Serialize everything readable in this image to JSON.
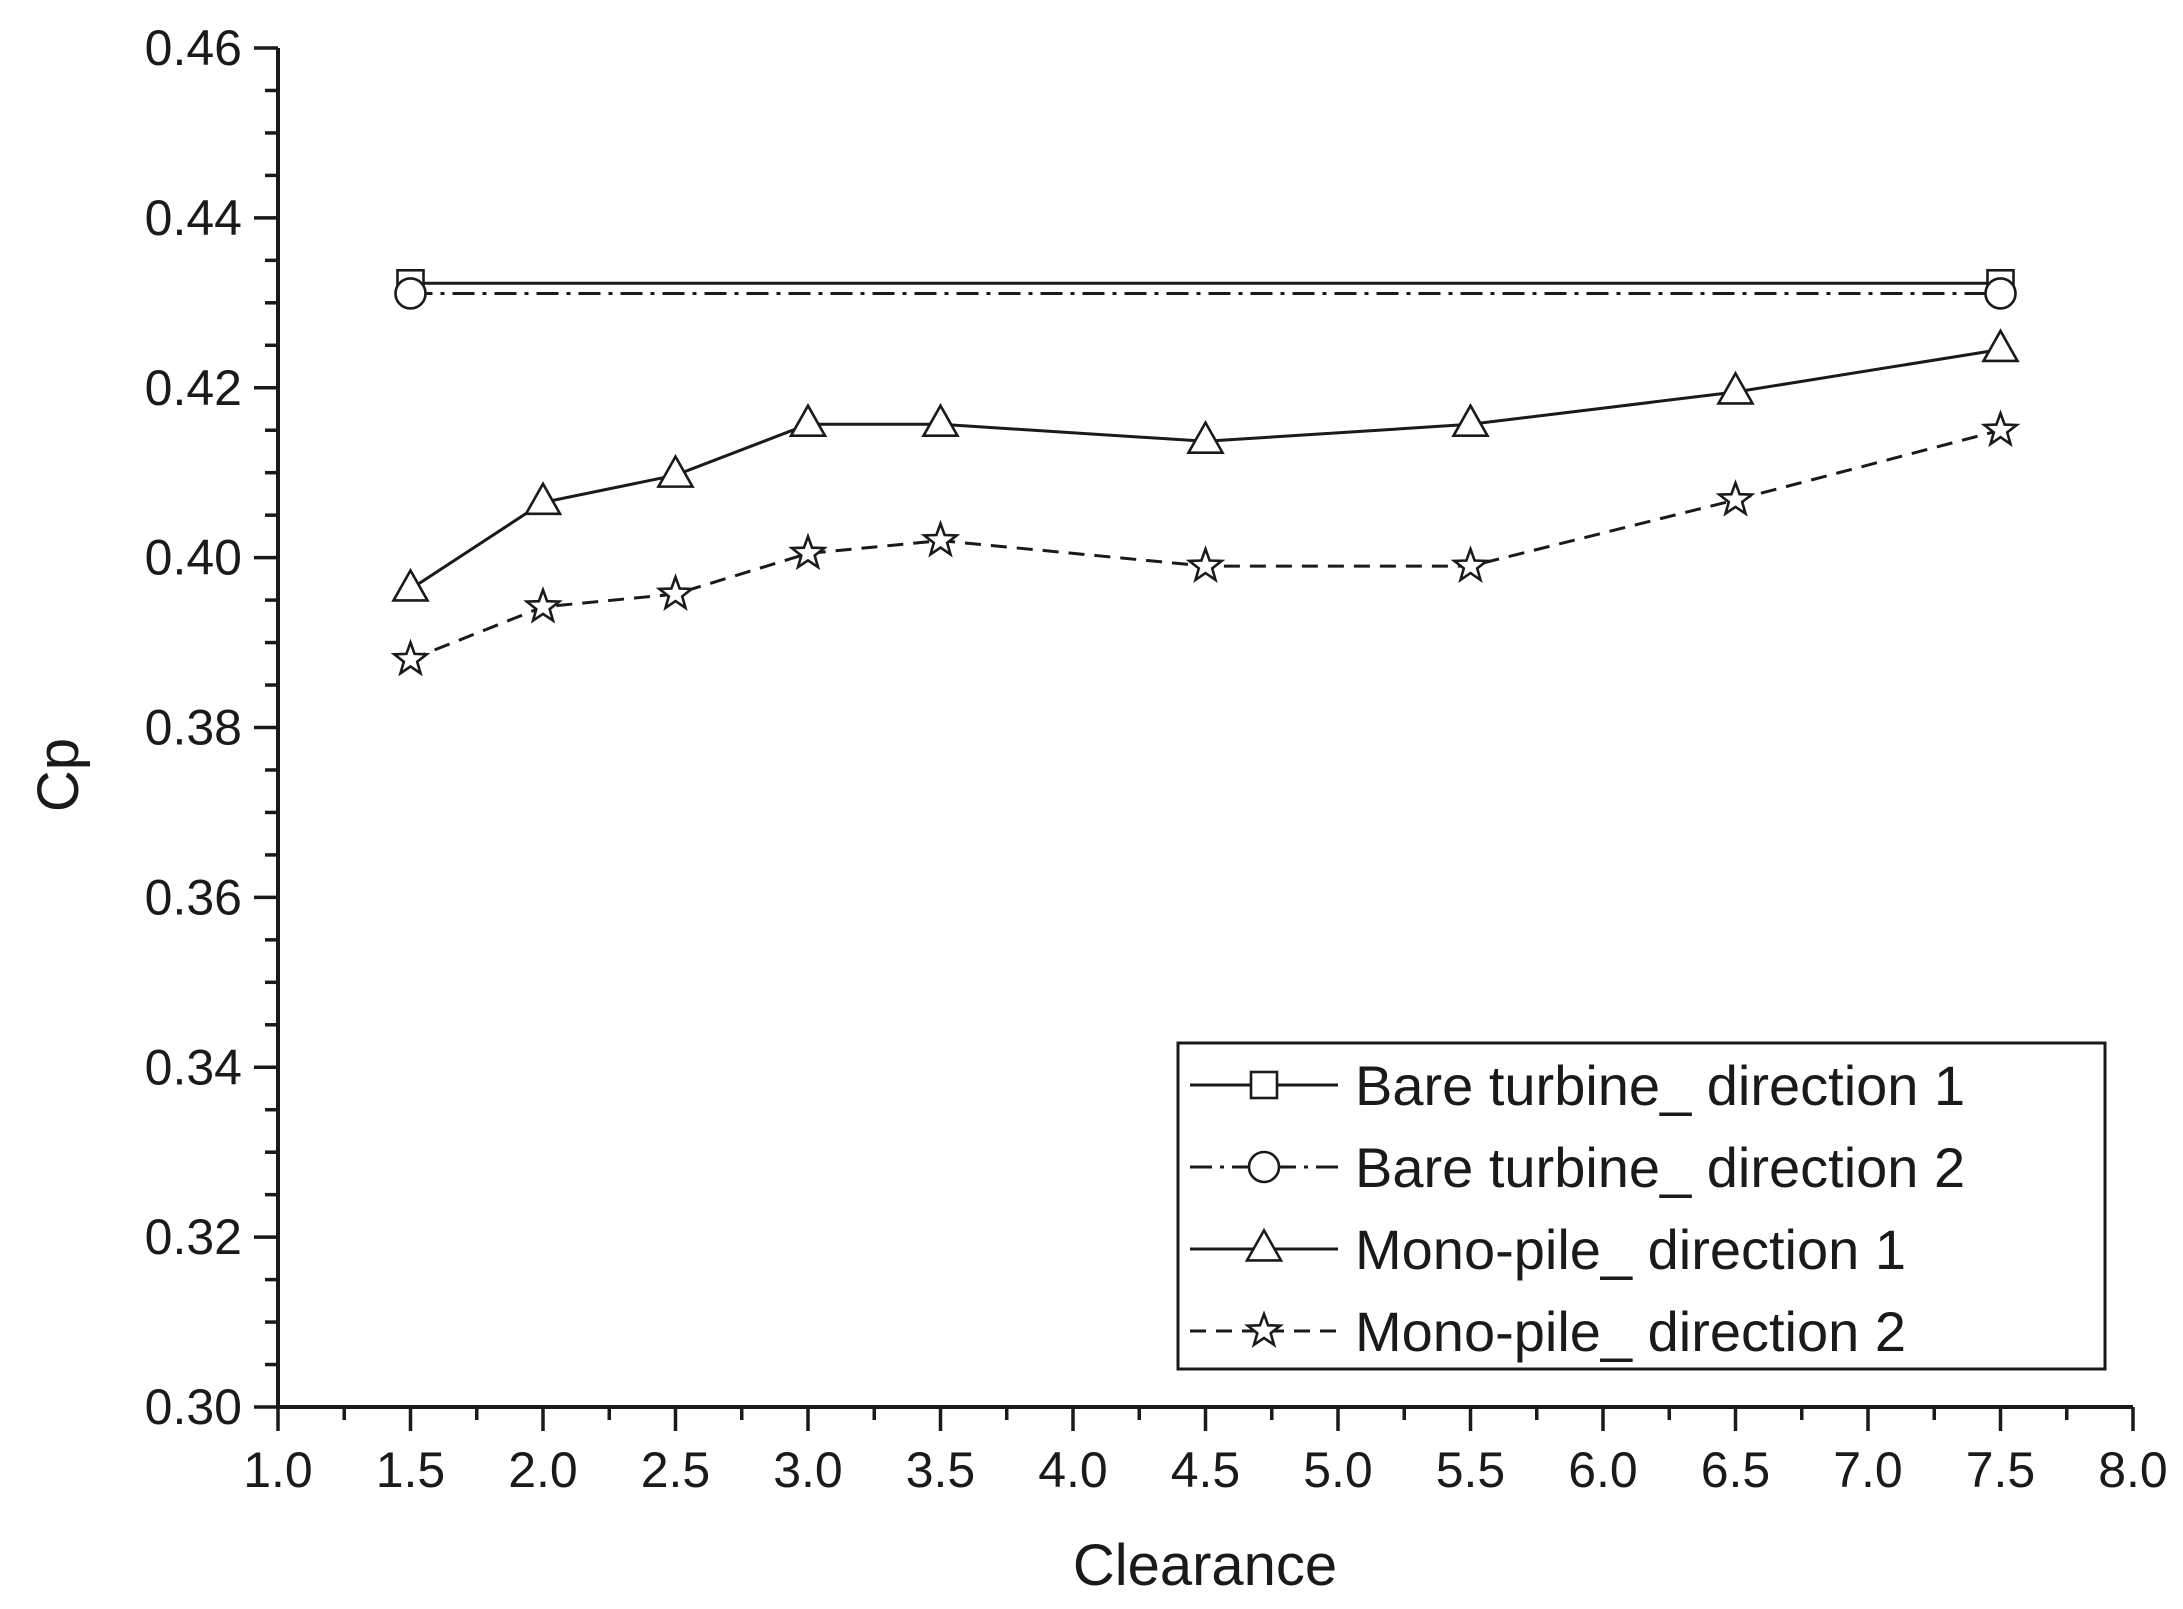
{
  "chart_data": {
    "type": "line",
    "title": "",
    "xlabel": "Clearance",
    "ylabel": "Cp",
    "xlim": [
      1.0,
      8.0
    ],
    "ylim": [
      0.3,
      0.46
    ],
    "x_ticks": [
      "1.0",
      "1.5",
      "2.0",
      "2.5",
      "3.0",
      "3.5",
      "4.0",
      "4.5",
      "5.0",
      "5.5",
      "6.0",
      "6.5",
      "7.0",
      "7.5",
      "8.0"
    ],
    "y_ticks": [
      "0.30",
      "0.32",
      "0.34",
      "0.36",
      "0.38",
      "0.40",
      "0.42",
      "0.44",
      "0.46"
    ],
    "grid": false,
    "legend_position": "bottom-right",
    "series": [
      {
        "name": "Bare turbine_ direction 1",
        "marker": "square",
        "line_style": "solid",
        "x": [
          1.5,
          7.5
        ],
        "y": [
          0.4323,
          0.4323
        ]
      },
      {
        "name": "Bare turbine_ direction 2",
        "marker": "circle",
        "line_style": "dash-dot",
        "x": [
          1.5,
          7.5
        ],
        "y": [
          0.4311,
          0.4311
        ]
      },
      {
        "name": "Mono-pile_ direction 1",
        "marker": "triangle",
        "line_style": "solid",
        "x": [
          1.5,
          2.0,
          2.5,
          3.0,
          3.5,
          4.5,
          5.5,
          6.5,
          7.5
        ],
        "y": [
          0.3963,
          0.4065,
          0.4097,
          0.4157,
          0.4157,
          0.4137,
          0.4157,
          0.4195,
          0.4245
        ]
      },
      {
        "name": "Mono-pile_ direction 2",
        "marker": "star",
        "line_style": "dashed",
        "x": [
          1.5,
          2.0,
          2.5,
          3.0,
          3.5,
          4.5,
          5.5,
          6.5,
          7.5
        ],
        "y": [
          0.388,
          0.3942,
          0.3957,
          0.4005,
          0.402,
          0.399,
          0.399,
          0.4068,
          0.415
        ]
      }
    ]
  }
}
